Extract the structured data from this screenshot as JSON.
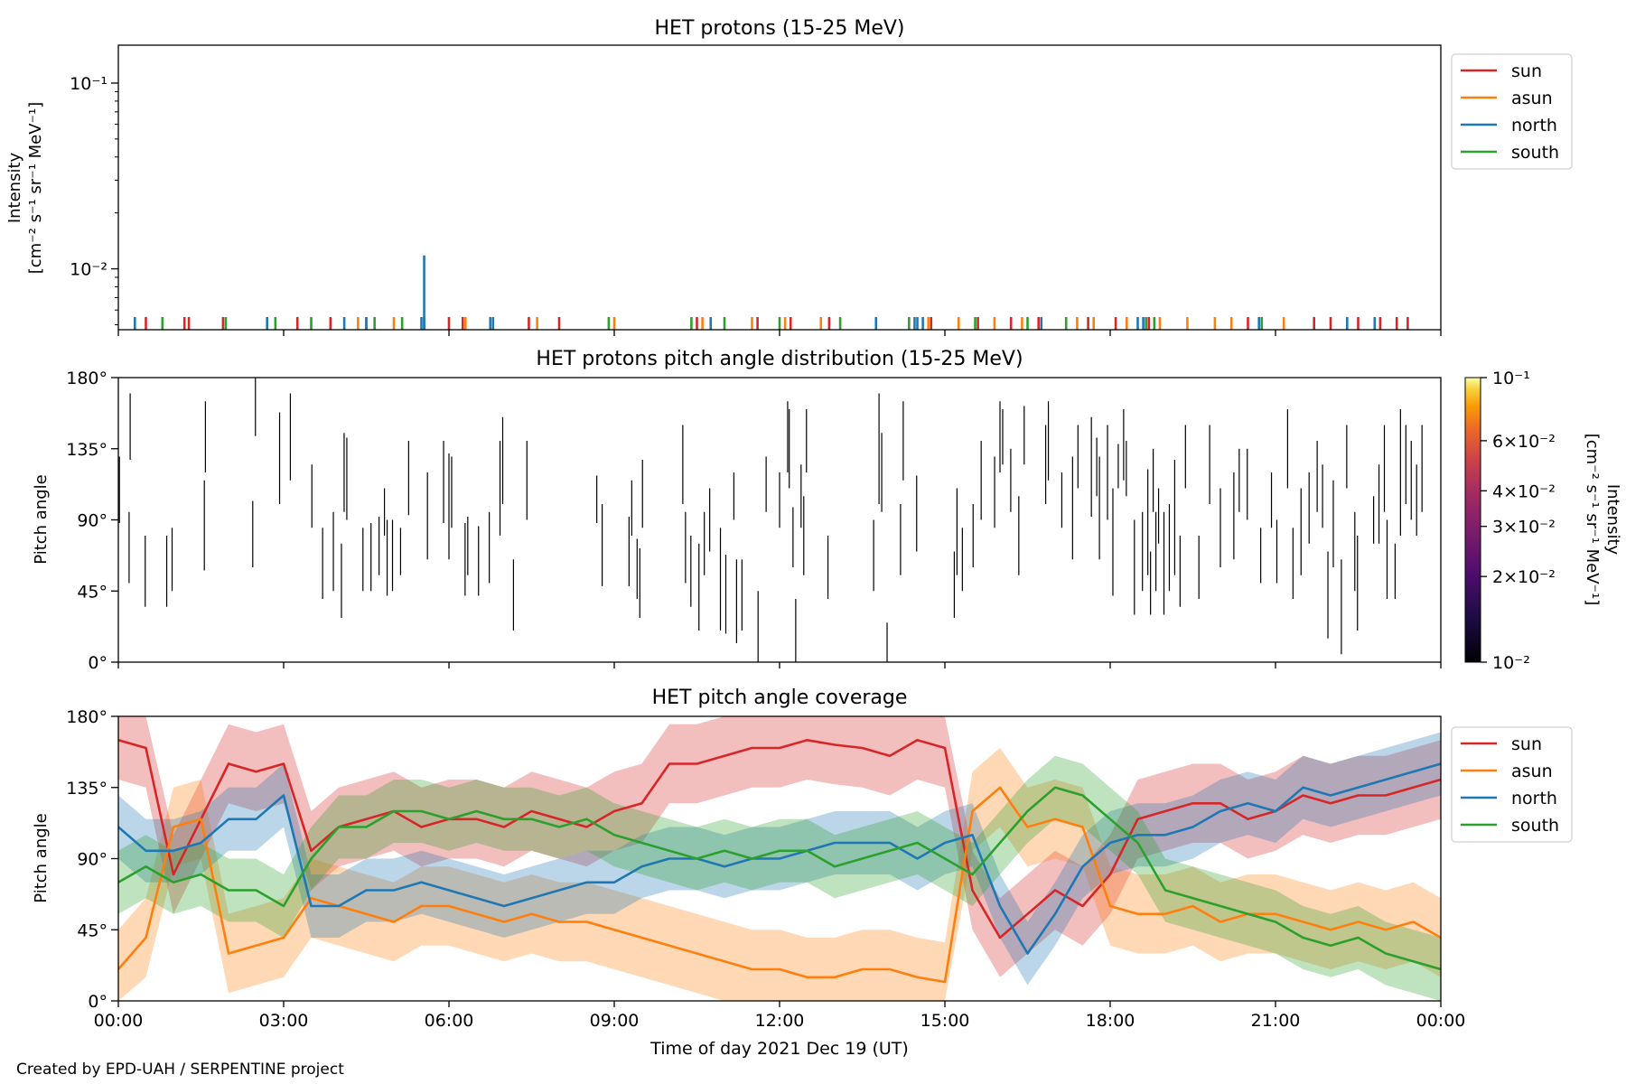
{
  "colors": {
    "sun": "#d62728",
    "asun": "#ff7f0e",
    "north": "#1f77b4",
    "south": "#2ca02c",
    "axis": "#000000"
  },
  "credit": "Created by EPD-UAH / SERPENTINE project",
  "chart_data": [
    {
      "type": "line",
      "title": "HET protons (15-25 MeV)",
      "ylabel_lines": [
        "Intensity",
        "[cm⁻² s⁻¹ sr⁻¹ MeV⁻¹]"
      ],
      "yscale": "log",
      "ylim": [
        0.0047,
        0.16
      ],
      "ytick_labels": [
        "10⁻¹",
        "10⁻²"
      ],
      "ytick_values": [
        0.1,
        0.01
      ],
      "xlim_hours": [
        0,
        24
      ],
      "legend": {
        "placement": "outside-right-top",
        "entries": [
          "sun",
          "asun",
          "north",
          "south"
        ]
      },
      "series": [
        {
          "name": "sun",
          "spikes_hours": [
            0.5,
            1.2,
            1.28,
            1.9,
            3.25,
            3.85,
            4.5,
            6.0,
            6.25,
            7.45,
            8.0,
            10.5,
            11.6,
            12.2,
            12.9,
            14.75,
            15.6,
            16.2,
            16.7,
            17.6,
            18.1,
            18.7,
            20.5,
            21.7,
            22.0,
            22.5,
            22.9,
            23.2,
            23.4
          ],
          "base_value": 0.0055
        },
        {
          "name": "asun",
          "spikes_hours": [
            4.35,
            5.0,
            6.3,
            7.6,
            9.0,
            10.6,
            11.5,
            12.1,
            12.75,
            14.7,
            15.25,
            15.9,
            16.4,
            17.4,
            17.7,
            18.3,
            18.9,
            19.4,
            19.9,
            20.2,
            21.15
          ],
          "base_value": 0.0055
        },
        {
          "name": "north",
          "spikes_hours": [
            0.3,
            2.7,
            4.1,
            4.5,
            5.5,
            5.55,
            6.75,
            6.8,
            10.75,
            13.75,
            14.45,
            14.5,
            14.6,
            16.75,
            18.5,
            18.6,
            20.7,
            22.3,
            22.8
          ],
          "base_value": 0.0055,
          "peak": {
            "hour": 5.55,
            "value": 0.0118
          }
        },
        {
          "name": "south",
          "spikes_hours": [
            0.8,
            1.95,
            2.85,
            3.5,
            4.65,
            5.15,
            8.9,
            10.4,
            11.0,
            12.0,
            13.1,
            14.35,
            15.55,
            16.5,
            17.2,
            18.65,
            18.8,
            20.75
          ],
          "base_value": 0.0055
        }
      ]
    },
    {
      "type": "heatmap",
      "title": "HET protons pitch angle distribution (15-25 MeV)",
      "ylabel": "Pitch angle",
      "ylim": [
        0,
        180
      ],
      "ytick_labels": [
        "0°",
        "45°",
        "90°",
        "135°",
        "180°"
      ],
      "ytick_values": [
        0,
        45,
        90,
        135,
        180
      ],
      "colorbar": {
        "label": "Intensity\n[cm⁻² s⁻¹ sr⁻¹ MeV⁻¹]",
        "scale": "log",
        "range": [
          0.01,
          0.1
        ],
        "tick_labels": [
          "10⁻¹",
          "6×10⁻²",
          "4×10⁻²",
          "3×10⁻²",
          "2×10⁻²",
          "10⁻²"
        ],
        "tick_values": [
          0.1,
          0.06,
          0.04,
          0.03,
          0.02,
          0.01
        ],
        "colormap": "inferno"
      },
      "segments": [
        [
          0.32,
          88,
          130
        ],
        [
          0.5,
          50,
          95
        ],
        [
          0.52,
          128,
          170
        ],
        [
          0.8,
          35,
          80
        ],
        [
          1.2,
          35,
          80
        ],
        [
          1.3,
          45,
          85
        ],
        [
          1.9,
          58,
          115
        ],
        [
          1.92,
          120,
          165
        ],
        [
          2.8,
          60,
          102
        ],
        [
          2.85,
          143,
          180
        ],
        [
          3.3,
          100,
          158
        ],
        [
          3.5,
          115,
          170
        ],
        [
          3.9,
          85,
          125
        ],
        [
          4.1,
          40,
          85
        ],
        [
          4.3,
          45,
          95
        ],
        [
          4.45,
          28,
          75
        ],
        [
          4.5,
          95,
          145
        ],
        [
          4.55,
          90,
          142
        ],
        [
          4.85,
          45,
          85
        ],
        [
          5.0,
          45,
          88
        ],
        [
          5.15,
          55,
          92
        ],
        [
          5.25,
          80,
          110
        ],
        [
          5.3,
          42,
          90
        ],
        [
          5.4,
          45,
          90
        ],
        [
          5.55,
          55,
          85
        ],
        [
          5.7,
          93,
          140
        ],
        [
          6.05,
          65,
          120
        ],
        [
          6.35,
          88,
          140
        ],
        [
          6.45,
          65,
          132
        ],
        [
          6.5,
          85,
          130
        ],
        [
          6.75,
          42,
          88
        ],
        [
          6.8,
          55,
          92
        ],
        [
          7.0,
          42,
          86
        ],
        [
          7.2,
          50,
          95
        ],
        [
          7.4,
          80,
          140
        ],
        [
          7.45,
          100,
          155
        ],
        [
          7.65,
          20,
          65
        ],
        [
          7.9,
          90,
          140
        ],
        [
          9.2,
          88,
          118
        ],
        [
          9.3,
          48,
          100
        ],
        [
          9.8,
          48,
          92
        ],
        [
          9.85,
          80,
          115
        ],
        [
          9.95,
          40,
          78
        ],
        [
          10.0,
          28,
          72
        ],
        [
          10.05,
          85,
          128
        ],
        [
          10.8,
          100,
          150
        ],
        [
          10.85,
          50,
          95
        ],
        [
          10.95,
          35,
          80
        ],
        [
          11.1,
          20,
          75
        ],
        [
          11.2,
          55,
          95
        ],
        [
          11.3,
          70,
          110
        ],
        [
          11.5,
          20,
          85
        ],
        [
          11.6,
          18,
          68
        ],
        [
          11.75,
          90,
          120
        ],
        [
          11.8,
          12,
          65
        ],
        [
          11.9,
          20,
          65
        ],
        [
          12.2,
          0,
          45
        ],
        [
          12.35,
          95,
          130
        ],
        [
          12.6,
          85,
          120
        ],
        [
          12.75,
          120,
          165
        ],
        [
          12.78,
          110,
          160
        ],
        [
          12.85,
          60,
          98
        ],
        [
          12.9,
          0,
          40
        ],
        [
          13.0,
          85,
          125
        ],
        [
          13.05,
          55,
          105
        ],
        [
          13.1,
          120,
          160
        ],
        [
          13.5,
          40,
          80
        ],
        [
          14.35,
          45,
          90
        ],
        [
          14.45,
          100,
          170
        ],
        [
          14.5,
          95,
          145
        ],
        [
          14.6,
          0,
          25
        ],
        [
          14.85,
          55,
          100
        ],
        [
          14.9,
          115,
          165
        ],
        [
          15.15,
          70,
          118
        ],
        [
          15.85,
          28,
          70
        ],
        [
          15.9,
          55,
          110
        ],
        [
          16.0,
          45,
          85
        ],
        [
          16.2,
          60,
          100
        ],
        [
          16.35,
          90,
          140
        ],
        [
          16.6,
          85,
          130
        ],
        [
          16.7,
          120,
          165
        ],
        [
          16.75,
          125,
          160
        ],
        [
          16.9,
          95,
          135
        ],
        [
          17.05,
          55,
          105
        ],
        [
          17.15,
          125,
          162
        ],
        [
          17.55,
          100,
          150
        ],
        [
          17.6,
          115,
          165
        ],
        [
          17.85,
          85,
          120
        ],
        [
          18.05,
          65,
          130
        ],
        [
          18.15,
          110,
          150
        ],
        [
          18.4,
          92,
          155
        ],
        [
          18.5,
          105,
          142
        ],
        [
          18.55,
          65,
          130
        ],
        [
          18.7,
          90,
          150
        ],
        [
          18.8,
          42,
          110
        ],
        [
          18.9,
          110,
          138
        ],
        [
          19.0,
          115,
          160
        ],
        [
          19.05,
          105,
          140
        ],
        [
          19.2,
          30,
          90
        ],
        [
          19.35,
          45,
          95
        ],
        [
          19.45,
          55,
          122
        ],
        [
          19.5,
          30,
          70
        ],
        [
          19.55,
          95,
          135
        ],
        [
          19.6,
          45,
          95
        ],
        [
          19.65,
          75,
          110
        ],
        [
          19.75,
          30,
          95
        ],
        [
          19.85,
          45,
          100
        ],
        [
          19.95,
          55,
          128
        ],
        [
          20.05,
          35,
          80
        ],
        [
          20.15,
          110,
          150
        ],
        [
          20.4,
          40,
          80
        ],
        [
          20.6,
          100,
          150
        ],
        [
          20.8,
          60,
          110
        ],
        [
          21.05,
          65,
          120
        ],
        [
          21.15,
          95,
          135
        ],
        [
          21.3,
          90,
          135
        ],
        [
          21.55,
          50,
          85
        ],
        [
          21.75,
          85,
          120
        ],
        [
          21.85,
          50,
          90
        ],
        [
          22.05,
          110,
          160
        ],
        [
          22.15,
          40,
          85
        ],
        [
          22.3,
          55,
          110
        ],
        [
          22.45,
          75,
          120
        ],
        [
          22.6,
          95,
          140
        ],
        [
          22.7,
          85,
          125
        ],
        [
          22.8,
          15,
          70
        ],
        [
          22.9,
          60,
          115
        ],
        [
          23.05,
          5,
          65
        ],
        [
          23.15,
          110,
          150
        ],
        [
          23.3,
          45,
          95
        ],
        [
          23.35,
          20,
          80
        ],
        [
          23.65,
          75,
          105
        ],
        [
          23.75,
          75,
          125
        ],
        [
          23.85,
          95,
          150
        ],
        [
          23.9,
          40,
          90
        ],
        [
          24.05,
          40,
          75
        ],
        [
          24.15,
          80,
          160
        ],
        [
          24.25,
          100,
          150
        ],
        [
          24.35,
          90,
          140
        ],
        [
          24.45,
          80,
          125
        ],
        [
          24.55,
          95,
          150
        ]
      ]
    },
    {
      "type": "area",
      "title": "HET pitch angle coverage",
      "ylabel": "Pitch angle",
      "xlabel": "Time of day 2021 Dec 19 (UT)",
      "ylim": [
        0,
        180
      ],
      "ytick_labels": [
        "0°",
        "45°",
        "90°",
        "135°",
        "180°"
      ],
      "ytick_values": [
        0,
        45,
        90,
        135,
        180
      ],
      "xtick_labels": [
        "00:00",
        "03:00",
        "06:00",
        "09:00",
        "12:00",
        "15:00",
        "18:00",
        "21:00",
        "00:00"
      ],
      "xtick_hours": [
        0,
        3,
        6,
        9,
        12,
        15,
        18,
        21,
        24
      ],
      "legend": {
        "placement": "outside-right-top",
        "entries": [
          "sun",
          "asun",
          "north",
          "south"
        ]
      },
      "x_hours": [
        0,
        0.5,
        1,
        1.5,
        2,
        2.5,
        3,
        3.5,
        4,
        4.5,
        5,
        5.5,
        6,
        6.5,
        7,
        7.5,
        8,
        8.5,
        9,
        9.5,
        10,
        10.5,
        11,
        11.5,
        12,
        12.5,
        13,
        13.5,
        14,
        14.5,
        15,
        15.5,
        16,
        16.5,
        17,
        17.5,
        18,
        18.5,
        19,
        19.5,
        20,
        20.5,
        21,
        21.5,
        22,
        22.5,
        23,
        23.5,
        24
      ],
      "series": [
        {
          "name": "sun",
          "values": [
            165,
            160,
            80,
            115,
            150,
            145,
            150,
            95,
            110,
            115,
            120,
            110,
            115,
            115,
            110,
            120,
            115,
            110,
            120,
            125,
            150,
            150,
            155,
            160,
            160,
            165,
            162,
            160,
            155,
            165,
            160,
            70,
            40,
            55,
            70,
            60,
            80,
            115,
            120,
            125,
            125,
            115,
            120,
            130,
            125,
            130,
            130,
            135,
            140
          ],
          "band": 25
        },
        {
          "name": "asun",
          "values": [
            20,
            40,
            110,
            115,
            30,
            35,
            40,
            65,
            60,
            55,
            50,
            60,
            60,
            55,
            50,
            55,
            50,
            50,
            45,
            40,
            35,
            30,
            25,
            20,
            20,
            15,
            15,
            20,
            20,
            15,
            12,
            120,
            135,
            110,
            115,
            110,
            60,
            55,
            55,
            60,
            50,
            55,
            55,
            50,
            45,
            50,
            45,
            50,
            40
          ],
          "band": 25
        },
        {
          "name": "north",
          "values": [
            110,
            95,
            95,
            100,
            115,
            115,
            130,
            60,
            60,
            70,
            70,
            75,
            70,
            65,
            60,
            65,
            70,
            75,
            75,
            85,
            90,
            90,
            85,
            90,
            90,
            95,
            100,
            100,
            100,
            90,
            100,
            105,
            60,
            30,
            55,
            85,
            100,
            105,
            105,
            110,
            120,
            125,
            120,
            135,
            130,
            135,
            140,
            145,
            150
          ],
          "band": 20
        },
        {
          "name": "south",
          "values": [
            75,
            85,
            75,
            80,
            70,
            70,
            60,
            90,
            110,
            110,
            120,
            120,
            115,
            120,
            115,
            115,
            110,
            115,
            105,
            100,
            95,
            90,
            95,
            90,
            95,
            95,
            85,
            90,
            95,
            100,
            90,
            80,
            100,
            120,
            135,
            130,
            115,
            100,
            70,
            65,
            60,
            55,
            50,
            40,
            35,
            40,
            30,
            25,
            20
          ],
          "band": 20
        }
      ]
    }
  ]
}
